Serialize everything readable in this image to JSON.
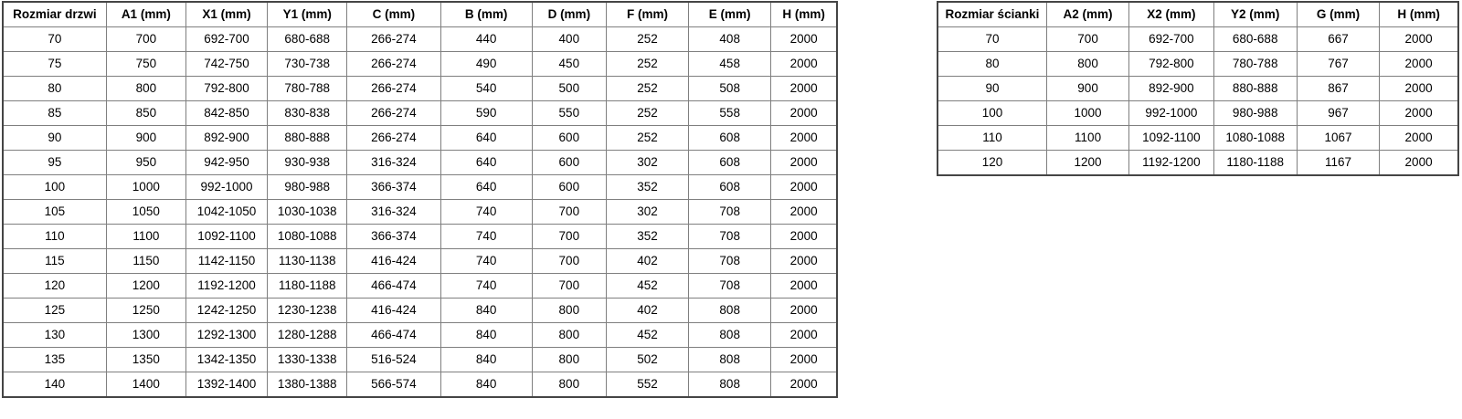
{
  "page": {
    "background_color": "#ffffff",
    "text_color": "#000000",
    "border_inner_color": "#7f7f7f",
    "border_outer_color": "#454545"
  },
  "doors_table": {
    "title": "Rozmiar drzwi",
    "headers": [
      "Rozmiar drzwi",
      "A1 (mm)",
      "X1 (mm)",
      "Y1 (mm)",
      "C (mm)",
      "B (mm)",
      "D (mm)",
      "F (mm)",
      "E (mm)",
      "H (mm)"
    ],
    "rows": [
      [
        "70",
        "700",
        "692-700",
        "680-688",
        "266-274",
        "440",
        "400",
        "252",
        "408",
        "2000"
      ],
      [
        "75",
        "750",
        "742-750",
        "730-738",
        "266-274",
        "490",
        "450",
        "252",
        "458",
        "2000"
      ],
      [
        "80",
        "800",
        "792-800",
        "780-788",
        "266-274",
        "540",
        "500",
        "252",
        "508",
        "2000"
      ],
      [
        "85",
        "850",
        "842-850",
        "830-838",
        "266-274",
        "590",
        "550",
        "252",
        "558",
        "2000"
      ],
      [
        "90",
        "900",
        "892-900",
        "880-888",
        "266-274",
        "640",
        "600",
        "252",
        "608",
        "2000"
      ],
      [
        "95",
        "950",
        "942-950",
        "930-938",
        "316-324",
        "640",
        "600",
        "302",
        "608",
        "2000"
      ],
      [
        "100",
        "1000",
        "992-1000",
        "980-988",
        "366-374",
        "640",
        "600",
        "352",
        "608",
        "2000"
      ],
      [
        "105",
        "1050",
        "1042-1050",
        "1030-1038",
        "316-324",
        "740",
        "700",
        "302",
        "708",
        "2000"
      ],
      [
        "110",
        "1100",
        "1092-1100",
        "1080-1088",
        "366-374",
        "740",
        "700",
        "352",
        "708",
        "2000"
      ],
      [
        "115",
        "1150",
        "1142-1150",
        "1130-1138",
        "416-424",
        "740",
        "700",
        "402",
        "708",
        "2000"
      ],
      [
        "120",
        "1200",
        "1192-1200",
        "1180-1188",
        "466-474",
        "740",
        "700",
        "452",
        "708",
        "2000"
      ],
      [
        "125",
        "1250",
        "1242-1250",
        "1230-1238",
        "416-424",
        "840",
        "800",
        "402",
        "808",
        "2000"
      ],
      [
        "130",
        "1300",
        "1292-1300",
        "1280-1288",
        "466-474",
        "840",
        "800",
        "452",
        "808",
        "2000"
      ],
      [
        "135",
        "1350",
        "1342-1350",
        "1330-1338",
        "516-524",
        "840",
        "800",
        "502",
        "808",
        "2000"
      ],
      [
        "140",
        "1400",
        "1392-1400",
        "1380-1388",
        "566-574",
        "840",
        "800",
        "552",
        "808",
        "2000"
      ]
    ]
  },
  "walls_table": {
    "title": "Rozmiar ścianki",
    "headers": [
      "Rozmiar ścianki",
      "A2 (mm)",
      "X2 (mm)",
      "Y2 (mm)",
      "G (mm)",
      "H (mm)"
    ],
    "rows": [
      [
        "70",
        "700",
        "692-700",
        "680-688",
        "667",
        "2000"
      ],
      [
        "80",
        "800",
        "792-800",
        "780-788",
        "767",
        "2000"
      ],
      [
        "90",
        "900",
        "892-900",
        "880-888",
        "867",
        "2000"
      ],
      [
        "100",
        "1000",
        "992-1000",
        "980-988",
        "967",
        "2000"
      ],
      [
        "110",
        "1100",
        "1092-1100",
        "1080-1088",
        "1067",
        "2000"
      ],
      [
        "120",
        "1200",
        "1192-1200",
        "1180-1188",
        "1167",
        "2000"
      ]
    ]
  }
}
